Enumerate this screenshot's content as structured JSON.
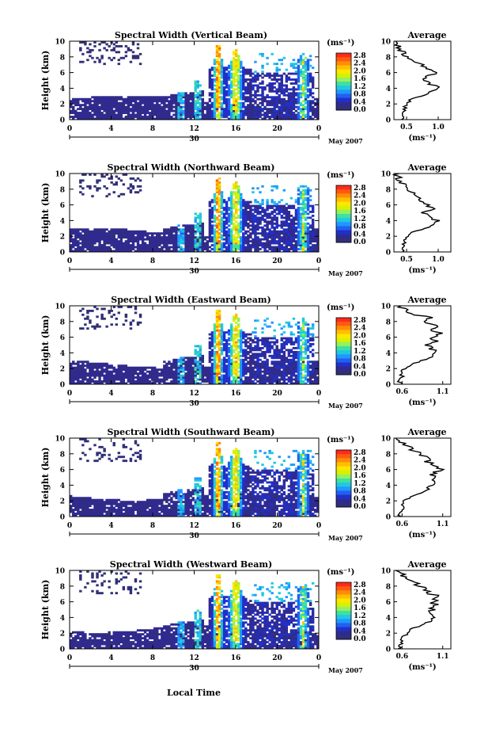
{
  "figure": {
    "xlabel": "Local Time",
    "day_label": "30",
    "month_label": "May 2007",
    "ylabel": "Height (km)",
    "unit_label": "(ms⁻¹)",
    "average_title": "Average"
  },
  "colorbar": {
    "ticks": [
      "2.8",
      "2.4",
      "2.0",
      "1.6",
      "1.2",
      "0.8",
      "0.4",
      "0.0"
    ],
    "colors": [
      "#ff2a1a",
      "#ff5a10",
      "#ff8c08",
      "#ffbf00",
      "#ffe600",
      "#d6f200",
      "#94f060",
      "#40e0a0",
      "#20c8e0",
      "#2098ff",
      "#2060f0",
      "#2030c8",
      "#302a90",
      "#303078"
    ]
  },
  "chart_data": [
    {
      "type": "heatmap",
      "title": "Spectral Width (Vertical Beam)",
      "xlabel": "Local Time",
      "ylabel": "Height (km)",
      "x_ticks": [
        "0",
        "4",
        "8",
        "12",
        "16",
        "20",
        "0"
      ],
      "xlim": [
        0,
        24
      ],
      "y_ticks": [
        "0",
        "2",
        "4",
        "6",
        "8",
        "10"
      ],
      "ylim": [
        0,
        10
      ],
      "colorbar": {
        "label": "(ms⁻¹)",
        "range": [
          0.0,
          3.0
        ]
      },
      "average": {
        "title": "Average",
        "xlabel": "(ms⁻¹)",
        "x_ticks": [
          "0.5",
          "1.0"
        ],
        "xlim": [
          0.3,
          1.2
        ],
        "y_ticks": [
          "0",
          "2",
          "4",
          "6",
          "8",
          "10"
        ],
        "ylim": [
          0,
          10
        ],
        "profile": {
          "height": [
            0.0,
            0.5,
            1.0,
            1.5,
            2.0,
            2.5,
            3.0,
            3.5,
            4.0,
            4.5,
            5.0,
            5.5,
            6.0,
            6.5,
            7.0,
            7.5,
            8.0,
            8.5,
            9.0,
            9.5,
            10.0
          ],
          "value": [
            0.45,
            0.44,
            0.45,
            0.47,
            0.5,
            0.56,
            0.72,
            0.88,
            1.02,
            0.9,
            0.8,
            0.85,
            0.95,
            0.82,
            0.72,
            0.62,
            0.52,
            0.45,
            0.4,
            0.36,
            0.34
          ]
        }
      }
    },
    {
      "type": "heatmap",
      "title": "Spectral Width (Northward Beam)",
      "xlabel": "Local Time",
      "ylabel": "Height (km)",
      "x_ticks": [
        "0",
        "4",
        "8",
        "12",
        "16",
        "20",
        "0"
      ],
      "xlim": [
        0,
        24
      ],
      "y_ticks": [
        "0",
        "2",
        "4",
        "6",
        "8",
        "10"
      ],
      "ylim": [
        0,
        10
      ],
      "colorbar": {
        "label": "(ms⁻¹)",
        "range": [
          0.0,
          3.0
        ]
      },
      "average": {
        "title": "Average",
        "xlabel": "(ms⁻¹)",
        "x_ticks": [
          "0.5",
          "1.0"
        ],
        "xlim": [
          0.3,
          1.2
        ],
        "y_ticks": [
          "0",
          "2",
          "4",
          "6",
          "8",
          "10"
        ],
        "ylim": [
          0,
          10
        ],
        "profile": {
          "height": [
            0.0,
            0.5,
            1.0,
            1.5,
            2.0,
            2.5,
            3.0,
            3.5,
            4.0,
            4.5,
            5.0,
            5.5,
            6.0,
            6.5,
            7.0,
            7.5,
            8.0,
            8.5,
            9.0,
            9.5,
            10.0
          ],
          "value": [
            0.46,
            0.45,
            0.46,
            0.48,
            0.52,
            0.6,
            0.8,
            0.95,
            1.0,
            0.86,
            0.78,
            0.9,
            0.82,
            0.74,
            0.68,
            0.58,
            0.5,
            0.44,
            0.4,
            0.37,
            0.35
          ]
        }
      }
    },
    {
      "type": "heatmap",
      "title": "Spectral Width (Eastward Beam)",
      "xlabel": "Local Time",
      "ylabel": "Height (km)",
      "x_ticks": [
        "0",
        "4",
        "8",
        "12",
        "16",
        "20",
        "0"
      ],
      "xlim": [
        0,
        24
      ],
      "y_ticks": [
        "0",
        "2",
        "4",
        "6",
        "8",
        "10"
      ],
      "ylim": [
        0,
        10
      ],
      "colorbar": {
        "label": "(ms⁻¹)",
        "range": [
          0.0,
          3.0
        ]
      },
      "average": {
        "title": "Average",
        "xlabel": "(ms⁻¹)",
        "x_ticks": [
          "0.6",
          "1.1"
        ],
        "xlim": [
          0.5,
          1.2
        ],
        "y_ticks": [
          "0",
          "2",
          "4",
          "6",
          "8",
          "10"
        ],
        "ylim": [
          0,
          10
        ],
        "profile": {
          "height": [
            0.0,
            0.5,
            1.0,
            1.5,
            2.0,
            2.5,
            3.0,
            3.5,
            4.0,
            4.5,
            5.0,
            5.5,
            6.0,
            6.5,
            7.0,
            7.5,
            8.0,
            8.5,
            9.0,
            9.5,
            10.0
          ],
          "value": [
            0.58,
            0.57,
            0.6,
            0.59,
            0.62,
            0.7,
            0.84,
            0.95,
            1.02,
            0.98,
            0.92,
            1.05,
            0.96,
            1.1,
            0.94,
            1.02,
            0.85,
            0.95,
            0.72,
            0.62,
            0.58
          ]
        }
      }
    },
    {
      "type": "heatmap",
      "title": "Spectral Width (Southward Beam)",
      "xlabel": "Local Time",
      "ylabel": "Height (km)",
      "x_ticks": [
        "0",
        "4",
        "8",
        "12",
        "16",
        "20",
        "0"
      ],
      "xlim": [
        0,
        24
      ],
      "y_ticks": [
        "0",
        "2",
        "4",
        "6",
        "8",
        "10"
      ],
      "ylim": [
        0,
        10
      ],
      "colorbar": {
        "label": "(ms⁻¹)",
        "range": [
          0.0,
          3.0
        ]
      },
      "average": {
        "title": "Average",
        "xlabel": "(ms⁻¹)",
        "x_ticks": [
          "0.6",
          "1.1"
        ],
        "xlim": [
          0.5,
          1.2
        ],
        "y_ticks": [
          "0",
          "2",
          "4",
          "6",
          "8",
          "10"
        ],
        "ylim": [
          0,
          10
        ],
        "profile": {
          "height": [
            0.0,
            0.5,
            1.0,
            1.5,
            2.0,
            2.5,
            3.0,
            3.5,
            4.0,
            4.5,
            5.0,
            5.5,
            6.0,
            6.5,
            7.0,
            7.5,
            8.0,
            8.5,
            9.0,
            9.5,
            10.0
          ],
          "value": [
            0.58,
            0.58,
            0.6,
            0.61,
            0.63,
            0.7,
            0.82,
            0.92,
            0.96,
            1.0,
            1.04,
            0.98,
            1.08,
            1.0,
            0.9,
            0.98,
            0.8,
            0.72,
            0.64,
            0.6,
            0.57
          ]
        }
      }
    },
    {
      "type": "heatmap",
      "title": "Spectral Width (Westward Beam)",
      "xlabel": "Local Time",
      "ylabel": "Height (km)",
      "x_ticks": [
        "0",
        "4",
        "8",
        "12",
        "16",
        "20",
        "0"
      ],
      "xlim": [
        0,
        24
      ],
      "y_ticks": [
        "0",
        "2",
        "4",
        "6",
        "8",
        "10"
      ],
      "ylim": [
        0,
        10
      ],
      "colorbar": {
        "label": "(ms⁻¹)",
        "range": [
          0.0,
          3.0
        ]
      },
      "average": {
        "title": "Average",
        "xlabel": "(ms⁻¹)",
        "x_ticks": [
          "0.6",
          "1.1"
        ],
        "xlim": [
          0.5,
          1.2
        ],
        "y_ticks": [
          "0",
          "2",
          "4",
          "6",
          "8",
          "10"
        ],
        "ylim": [
          0,
          10
        ],
        "profile": {
          "height": [
            0.0,
            0.5,
            1.0,
            1.5,
            2.0,
            2.5,
            3.0,
            3.5,
            4.0,
            4.5,
            5.0,
            5.5,
            6.0,
            6.5,
            7.0,
            7.5,
            8.0,
            8.5,
            9.0,
            9.5,
            10.0
          ],
          "value": [
            0.57,
            0.58,
            0.61,
            0.6,
            0.66,
            0.72,
            0.84,
            0.94,
            1.0,
            0.92,
            0.96,
            1.04,
            0.94,
            1.06,
            0.96,
            0.9,
            0.82,
            0.72,
            0.64,
            0.6,
            0.58
          ]
        }
      }
    }
  ]
}
